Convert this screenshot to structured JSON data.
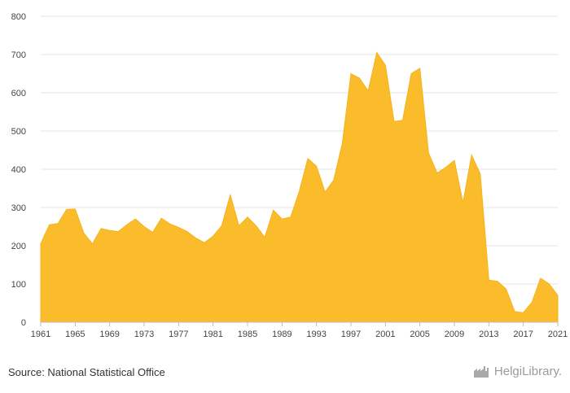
{
  "source": "Source: National Statistical Office",
  "logo": {
    "text": "HelgiLibrary.",
    "icon": "factory-icon"
  },
  "colors": {
    "area_fill": "#fbbc2c",
    "area_stroke": "#f5b21a",
    "grid": "#e6e6e6",
    "axis": "#bdbdbd"
  },
  "chart_data": {
    "type": "area",
    "title": "",
    "xlabel": "",
    "ylabel": "",
    "ylim": [
      0,
      800
    ],
    "xlim": [
      1961,
      2021
    ],
    "yticks": [
      0,
      100,
      200,
      300,
      400,
      500,
      600,
      700,
      800
    ],
    "xticks": [
      1961,
      1965,
      1969,
      1973,
      1977,
      1981,
      1985,
      1989,
      1993,
      1997,
      2001,
      2005,
      2009,
      2013,
      2017,
      2021
    ],
    "grid": true,
    "legend": "none",
    "x": [
      1961,
      1962,
      1963,
      1964,
      1965,
      1966,
      1967,
      1968,
      1969,
      1970,
      1971,
      1972,
      1973,
      1974,
      1975,
      1976,
      1977,
      1978,
      1979,
      1980,
      1981,
      1982,
      1983,
      1984,
      1985,
      1986,
      1987,
      1988,
      1989,
      1990,
      1991,
      1992,
      1993,
      1994,
      1995,
      1996,
      1997,
      1998,
      1999,
      2000,
      2001,
      2002,
      2003,
      2004,
      2005,
      2006,
      2007,
      2008,
      2009,
      2010,
      2011,
      2012,
      2013,
      2014,
      2015,
      2016,
      2017,
      2018,
      2019,
      2020,
      2021
    ],
    "values": [
      205,
      255,
      258,
      295,
      296,
      233,
      205,
      245,
      240,
      237,
      255,
      270,
      250,
      235,
      272,
      257,
      248,
      237,
      220,
      208,
      225,
      252,
      333,
      252,
      275,
      252,
      222,
      293,
      270,
      275,
      342,
      428,
      408,
      340,
      372,
      468,
      650,
      638,
      605,
      705,
      672,
      525,
      528,
      650,
      664,
      443,
      390,
      405,
      423,
      312,
      437,
      388,
      110,
      107,
      87,
      28,
      25,
      52,
      115,
      100,
      70
    ]
  }
}
